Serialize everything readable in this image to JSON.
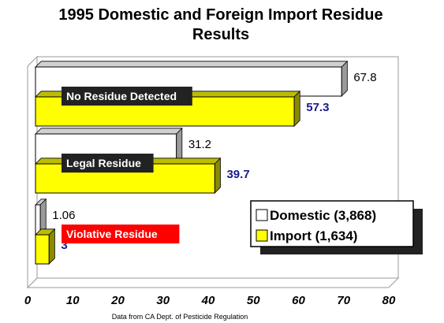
{
  "chart_data": {
    "type": "bar",
    "orientation": "horizontal",
    "title": [
      "1995 Domestic and Foreign Import Residue",
      "Results"
    ],
    "categories": [
      "No Residue Detected",
      "Legal Residue",
      "Violative Residue"
    ],
    "series": [
      {
        "name": "Domestic (3,868)",
        "values": [
          67.8,
          31.2,
          1.06
        ],
        "labels": [
          "67.8",
          "31.2",
          "1.06"
        ],
        "color": "#ffffff"
      },
      {
        "name": "Import (1,634)",
        "values": [
          57.3,
          39.7,
          3
        ],
        "labels": [
          "57.3",
          "39.7",
          "3"
        ],
        "color": "#ffff00"
      }
    ],
    "xlim": [
      0,
      80
    ],
    "xticks": [
      "0",
      "10",
      "20",
      "30",
      "40",
      "50",
      "60",
      "70",
      "80"
    ],
    "category_label_colors": [
      "#222222",
      "#222222",
      "#ff0000"
    ],
    "legend_position": "bottom-right",
    "source": "Data from CA Dept. of Pesticide Regulation",
    "grid": false
  }
}
